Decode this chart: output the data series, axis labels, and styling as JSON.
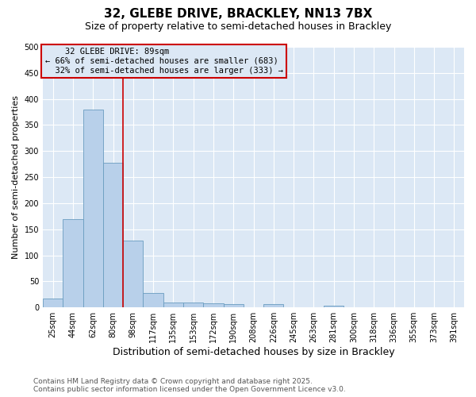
{
  "title": "32, GLEBE DRIVE, BRACKLEY, NN13 7BX",
  "subtitle": "Size of property relative to semi-detached houses in Brackley",
  "xlabel": "Distribution of semi-detached houses by size in Brackley",
  "ylabel": "Number of semi-detached properties",
  "categories": [
    "25sqm",
    "44sqm",
    "62sqm",
    "80sqm",
    "98sqm",
    "117sqm",
    "135sqm",
    "153sqm",
    "172sqm",
    "190sqm",
    "208sqm",
    "226sqm",
    "245sqm",
    "263sqm",
    "281sqm",
    "300sqm",
    "318sqm",
    "336sqm",
    "355sqm",
    "373sqm",
    "391sqm"
  ],
  "values": [
    17,
    170,
    380,
    278,
    128,
    27,
    9,
    9,
    8,
    6,
    0,
    6,
    0,
    0,
    3,
    0,
    0,
    0,
    0,
    0,
    0
  ],
  "bar_color": "#b8d0ea",
  "bar_edge_color": "#6a9cc0",
  "plot_bg_color": "#dce8f5",
  "fig_bg_color": "#ffffff",
  "grid_color": "#ffffff",
  "property_line_x": 3.5,
  "property_label": "32 GLEBE DRIVE: 89sqm",
  "pct_smaller": 66,
  "pct_larger": 32,
  "count_smaller": 683,
  "count_larger": 333,
  "annotation_box_color": "#cc0000",
  "property_line_color": "#cc0000",
  "ylim": [
    0,
    500
  ],
  "footnote1": "Contains HM Land Registry data © Crown copyright and database right 2025.",
  "footnote2": "Contains public sector information licensed under the Open Government Licence v3.0.",
  "title_fontsize": 11,
  "subtitle_fontsize": 9,
  "xlabel_fontsize": 9,
  "ylabel_fontsize": 8,
  "tick_fontsize": 7,
  "annotation_fontsize": 7.5,
  "footnote_fontsize": 6.5
}
